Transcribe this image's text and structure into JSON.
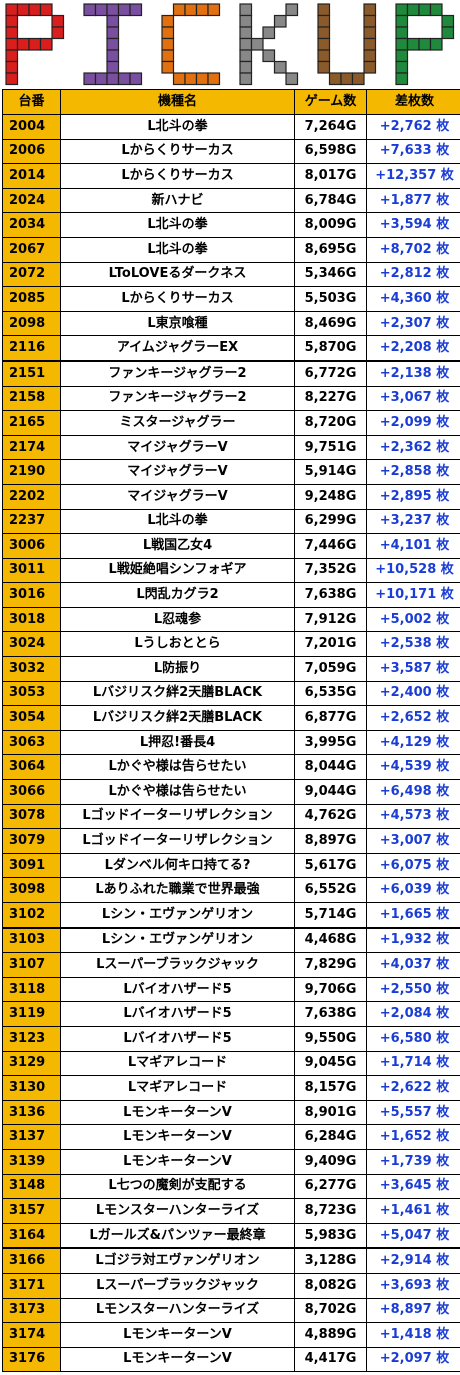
{
  "banner": {
    "title": "PICKUP",
    "letters": [
      "P",
      "I",
      "C",
      "K",
      "U",
      "P"
    ],
    "colors": [
      "#d91e1e",
      "#7a4fa0",
      "#e07010",
      "#888888",
      "#8b5a2b",
      "#1f8a3b"
    ]
  },
  "table": {
    "headers": {
      "unit": "台番",
      "name": "機種名",
      "games": "ゲーム数",
      "diff": "差枚数"
    },
    "rows": [
      {
        "unit": "2004",
        "name": "L北斗の拳",
        "games": "7,264G",
        "diff": "+2,762 枚"
      },
      {
        "unit": "2006",
        "name": "Lからくりサーカス",
        "games": "6,598G",
        "diff": "+7,633 枚"
      },
      {
        "unit": "2014",
        "name": "Lからくりサーカス",
        "games": "8,017G",
        "diff": "+12,357 枚"
      },
      {
        "unit": "2024",
        "name": "新ハナビ",
        "games": "6,784G",
        "diff": "+1,877 枚"
      },
      {
        "unit": "2034",
        "name": "L北斗の拳",
        "games": "8,009G",
        "diff": "+3,594 枚"
      },
      {
        "unit": "2067",
        "name": "L北斗の拳",
        "games": "8,695G",
        "diff": "+8,702 枚"
      },
      {
        "unit": "2072",
        "name": "LToLOVEるダークネス",
        "games": "5,346G",
        "diff": "+2,812 枚"
      },
      {
        "unit": "2085",
        "name": "Lからくりサーカス",
        "games": "5,503G",
        "diff": "+4,360 枚"
      },
      {
        "unit": "2098",
        "name": "L東京喰種",
        "games": "8,469G",
        "diff": "+2,307 枚"
      },
      {
        "unit": "2116",
        "name": "アイムジャグラーEX",
        "games": "5,870G",
        "diff": "+2,208 枚"
      },
      {
        "unit": "2151",
        "name": "ファンキージャグラー2",
        "games": "6,772G",
        "diff": "+2,138 枚"
      },
      {
        "unit": "2158",
        "name": "ファンキージャグラー2",
        "games": "8,227G",
        "diff": "+3,067 枚"
      },
      {
        "unit": "2165",
        "name": "ミスタージャグラー",
        "games": "8,720G",
        "diff": "+2,099 枚"
      },
      {
        "unit": "2174",
        "name": "マイジャグラーV",
        "games": "9,751G",
        "diff": "+2,362 枚"
      },
      {
        "unit": "2190",
        "name": "マイジャグラーV",
        "games": "5,914G",
        "diff": "+2,858 枚"
      },
      {
        "unit": "2202",
        "name": "マイジャグラーV",
        "games": "9,248G",
        "diff": "+2,895 枚"
      },
      {
        "unit": "2237",
        "name": "L北斗の拳",
        "games": "6,299G",
        "diff": "+3,237 枚"
      },
      {
        "unit": "3006",
        "name": "L戦国乙女4",
        "games": "7,446G",
        "diff": "+4,101 枚"
      },
      {
        "unit": "3011",
        "name": "L戦姫絶唱シンフォギア",
        "games": "7,352G",
        "diff": "+10,528 枚"
      },
      {
        "unit": "3016",
        "name": "L閃乱カグラ2",
        "games": "7,638G",
        "diff": "+10,171 枚"
      },
      {
        "unit": "3018",
        "name": "L忍魂参",
        "games": "7,912G",
        "diff": "+5,002 枚"
      },
      {
        "unit": "3024",
        "name": "Lうしおととら",
        "games": "7,201G",
        "diff": "+2,538 枚"
      },
      {
        "unit": "3032",
        "name": "L防振り",
        "games": "7,059G",
        "diff": "+3,587 枚"
      },
      {
        "unit": "3053",
        "name": "Lバジリスク絆2天膳BLACK",
        "games": "6,535G",
        "diff": "+2,400 枚"
      },
      {
        "unit": "3054",
        "name": "Lバジリスク絆2天膳BLACK",
        "games": "6,877G",
        "diff": "+2,652 枚"
      },
      {
        "unit": "3063",
        "name": "L押忍!番長4",
        "games": "3,995G",
        "diff": "+4,129 枚"
      },
      {
        "unit": "3064",
        "name": "Lかぐや様は告らせたい",
        "games": "8,044G",
        "diff": "+4,539 枚"
      },
      {
        "unit": "3066",
        "name": "Lかぐや様は告らせたい",
        "games": "9,044G",
        "diff": "+6,498 枚"
      },
      {
        "unit": "3078",
        "name": "Lゴッドイーターリザレクション",
        "games": "4,762G",
        "diff": "+4,573 枚"
      },
      {
        "unit": "3079",
        "name": "Lゴッドイーターリザレクション",
        "games": "8,897G",
        "diff": "+3,007 枚"
      },
      {
        "unit": "3091",
        "name": "Lダンベル何キロ持てる?",
        "games": "5,617G",
        "diff": "+6,075 枚"
      },
      {
        "unit": "3098",
        "name": "Lありふれた職業で世界最強",
        "games": "6,552G",
        "diff": "+6,039 枚"
      },
      {
        "unit": "3102",
        "name": "Lシン・エヴァンゲリオン",
        "games": "5,714G",
        "diff": "+1,665 枚"
      },
      {
        "unit": "3103",
        "name": "Lシン・エヴァンゲリオン",
        "games": "4,468G",
        "diff": "+1,932 枚"
      },
      {
        "unit": "3107",
        "name": "Lスーパーブラックジャック",
        "games": "7,829G",
        "diff": "+4,037 枚"
      },
      {
        "unit": "3118",
        "name": "Lバイオハザード5",
        "games": "9,706G",
        "diff": "+2,550 枚"
      },
      {
        "unit": "3119",
        "name": "Lバイオハザード5",
        "games": "7,638G",
        "diff": "+2,084 枚"
      },
      {
        "unit": "3123",
        "name": "Lバイオハザード5",
        "games": "9,550G",
        "diff": "+6,580 枚"
      },
      {
        "unit": "3129",
        "name": "Lマギアレコード",
        "games": "9,045G",
        "diff": "+1,714 枚"
      },
      {
        "unit": "3130",
        "name": "Lマギアレコード",
        "games": "8,157G",
        "diff": "+2,622 枚"
      },
      {
        "unit": "3136",
        "name": "LモンキーターンV",
        "games": "8,901G",
        "diff": "+5,557 枚"
      },
      {
        "unit": "3137",
        "name": "LモンキーターンV",
        "games": "6,284G",
        "diff": "+1,652 枚"
      },
      {
        "unit": "3139",
        "name": "LモンキーターンV",
        "games": "9,409G",
        "diff": "+1,739 枚"
      },
      {
        "unit": "3148",
        "name": "L七つの魔剣が支配する",
        "games": "6,277G",
        "diff": "+3,645 枚"
      },
      {
        "unit": "3157",
        "name": "Lモンスターハンターライズ",
        "games": "8,723G",
        "diff": "+1,461 枚"
      },
      {
        "unit": "3164",
        "name": "Lガールズ&パンツァー最終章",
        "games": "5,983G",
        "diff": "+5,047 枚"
      },
      {
        "unit": "3166",
        "name": "Lゴジラ対エヴァンゲリオン",
        "games": "3,128G",
        "diff": "+2,914 枚"
      },
      {
        "unit": "3171",
        "name": "Lスーパーブラックジャック",
        "games": "8,082G",
        "diff": "+3,693 枚"
      },
      {
        "unit": "3173",
        "name": "Lモンスターハンターライズ",
        "games": "8,702G",
        "diff": "+8,897 枚"
      },
      {
        "unit": "3174",
        "name": "LモンキーターンV",
        "games": "4,889G",
        "diff": "+1,418 枚"
      },
      {
        "unit": "3176",
        "name": "LモンキーターンV",
        "games": "4,417G",
        "diff": "+2,097 枚"
      }
    ],
    "separator_before": [
      "2151",
      "3103",
      "3166"
    ]
  }
}
